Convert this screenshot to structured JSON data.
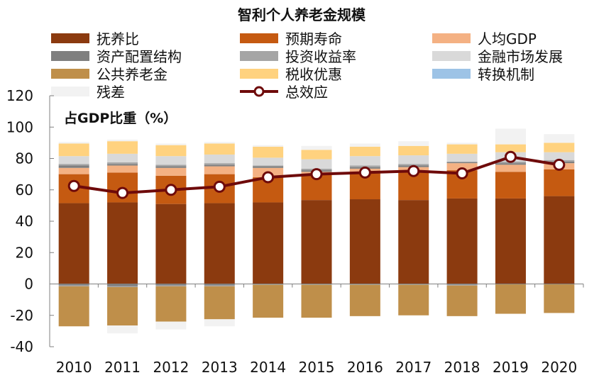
{
  "chart_data": {
    "type": "bar",
    "stacked": true,
    "title": "智利个人养老金规模",
    "ylabel": "占GDP比重（%）",
    "xlabel": "",
    "ylim": [
      -40,
      120
    ],
    "yticks": [
      -40,
      -20,
      0,
      20,
      40,
      60,
      80,
      100,
      120
    ],
    "categories": [
      "2010",
      "2011",
      "2012",
      "2013",
      "2014",
      "2015",
      "2016",
      "2017",
      "2018",
      "2019",
      "2020"
    ],
    "legend_position": "top",
    "series": [
      {
        "name": "抚养比",
        "color": "#8B3A0F",
        "kind": "bar",
        "values": [
          51.5,
          52,
          51,
          51.5,
          52,
          53.5,
          54,
          53.5,
          54.5,
          54.5,
          56
        ]
      },
      {
        "name": "预期寿命",
        "color": "#C55A11",
        "kind": "bar",
        "values": [
          18.5,
          19,
          18,
          18.5,
          16,
          16,
          16.5,
          18.5,
          18,
          17,
          17
        ]
      },
      {
        "name": "人均GDP",
        "color": "#F4B183",
        "kind": "bar",
        "values": [
          4,
          4.5,
          5,
          5,
          6,
          2,
          3,
          2.5,
          4.5,
          4.5,
          4
        ]
      },
      {
        "name": "资产配置结构",
        "color": "#7F7F7F",
        "kind": "bar",
        "values": [
          [
            1.5,
            -1
          ],
          [
            1,
            -1.5
          ],
          [
            1,
            -1
          ],
          [
            1,
            -1
          ],
          [
            1,
            0
          ],
          [
            1,
            0
          ],
          [
            1,
            0
          ],
          [
            1,
            0
          ],
          [
            0.5,
            -0.5
          ],
          [
            1,
            0
          ],
          [
            1,
            0
          ]
        ]
      },
      {
        "name": "投资收益率",
        "color": "#A5A5A5",
        "kind": "bar",
        "values": [
          [
            1,
            -0.5
          ],
          [
            1,
            -0.5
          ],
          [
            1,
            -0.5
          ],
          [
            1,
            -0.5
          ],
          [
            0.5,
            -0.5
          ],
          [
            1,
            -0.5
          ],
          [
            1,
            -0.5
          ],
          [
            1,
            -0.5
          ],
          [
            0.5,
            -0.5
          ],
          [
            1,
            0
          ],
          [
            1,
            0
          ]
        ]
      },
      {
        "name": "金融市场发展",
        "color": "#D9D9D9",
        "kind": "bar",
        "values": [
          5,
          5.5,
          5.5,
          5.5,
          5,
          6,
          6,
          5.5,
          5,
          6,
          5
        ]
      },
      {
        "name": "公共养老金",
        "color": "#BF8F4A",
        "kind": "bar",
        "values": [
          -25.5,
          -24.5,
          -22.5,
          -21,
          -21,
          -21,
          -20,
          -19.5,
          -19.5,
          -19,
          -18.5
        ]
      },
      {
        "name": "税收优惠",
        "color": "#FFD27F",
        "kind": "bar",
        "values": [
          8,
          8,
          7,
          7,
          7,
          6,
          6,
          6,
          6,
          5,
          6
        ]
      },
      {
        "name": "转换机制",
        "color": "#9DC3E6",
        "kind": "bar",
        "values": [
          0,
          0,
          0,
          0,
          0,
          0,
          0,
          0,
          0,
          0,
          0
        ]
      },
      {
        "name": "残差",
        "color": "#F2F2F2",
        "kind": "bar",
        "values": [
          [
            1,
            0
          ],
          [
            1,
            -5
          ],
          [
            1,
            -5
          ],
          [
            1,
            -4.5
          ],
          [
            1,
            0
          ],
          [
            2.5,
            0
          ],
          [
            2,
            0
          ],
          [
            3,
            0
          ],
          [
            1,
            0
          ],
          [
            10,
            0
          ],
          [
            5.5,
            0
          ]
        ]
      },
      {
        "name": "总效应",
        "color": "#6E0A0A",
        "kind": "line",
        "values": [
          62.5,
          58,
          60,
          62,
          68,
          70,
          71,
          72,
          70.5,
          81,
          76
        ]
      }
    ]
  }
}
